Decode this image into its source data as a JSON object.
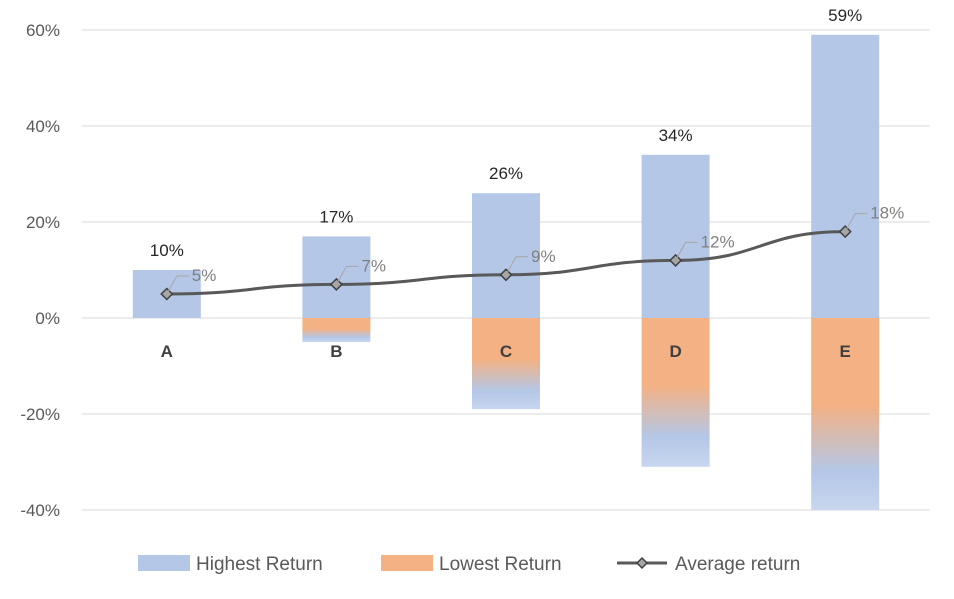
{
  "chart_data": {
    "type": "bar",
    "categories": [
      "A",
      "B",
      "C",
      "D",
      "E"
    ],
    "series": [
      {
        "name": "Highest Return",
        "kind": "bar",
        "values": [
          10,
          17,
          26,
          34,
          59
        ],
        "color": "#b4c7e7"
      },
      {
        "name": "Lowest Return",
        "kind": "bar",
        "values": [
          0,
          -5,
          -19,
          -31,
          -40
        ],
        "color": "#f4b183"
      },
      {
        "name": "Average return",
        "kind": "line",
        "values": [
          5,
          7,
          9,
          12,
          18
        ],
        "color": "#595959"
      }
    ],
    "value_format": "percent",
    "y_ticks": [
      "60%",
      "40%",
      "20%",
      "0%",
      "-20%",
      "-40%"
    ],
    "ylim": [
      -40,
      60
    ],
    "grid": true,
    "legend_position": "bottom",
    "title": "",
    "xlabel": "",
    "ylabel": ""
  }
}
